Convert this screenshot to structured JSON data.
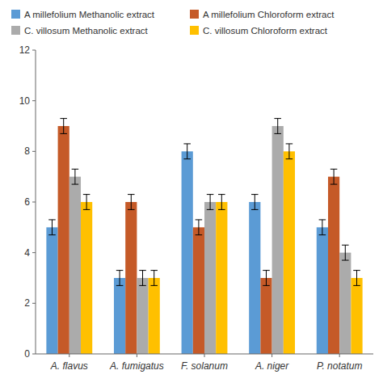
{
  "chart_data": {
    "type": "bar",
    "categories": [
      "A. flavus",
      "A. fumigatus",
      "F. solanum",
      "A. niger",
      "P. notatum"
    ],
    "series": [
      {
        "name": "A millefolium Methanolic extract",
        "color": "#5B9BD5",
        "values": [
          5,
          3,
          8,
          6,
          5
        ],
        "errors": [
          0.3,
          0.3,
          0.3,
          0.3,
          0.3
        ]
      },
      {
        "name": "A millefolium Chloroform extract",
        "color": "#C55A28",
        "values": [
          9,
          6,
          5,
          3,
          7
        ],
        "errors": [
          0.3,
          0.3,
          0.3,
          0.3,
          0.3
        ]
      },
      {
        "name": "C. villosum Methanolic extract",
        "color": "#ABABAB",
        "values": [
          7,
          3,
          6,
          9,
          4
        ],
        "errors": [
          0.3,
          0.3,
          0.3,
          0.3,
          0.3
        ]
      },
      {
        "name": "C. villosum Chloroform extract",
        "color": "#FFC000",
        "values": [
          6,
          3,
          6,
          8,
          3
        ],
        "errors": [
          0.3,
          0.3,
          0.3,
          0.3,
          0.3
        ]
      }
    ],
    "ylim": [
      0,
      12
    ],
    "yticks": [
      0,
      2,
      4,
      6,
      8,
      10,
      12
    ],
    "grid": false,
    "legend": "upper left"
  }
}
